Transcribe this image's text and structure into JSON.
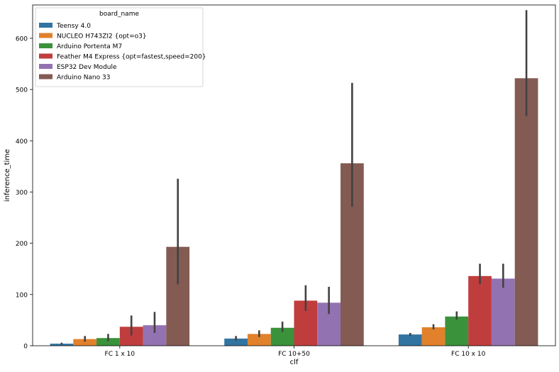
{
  "chart_data": {
    "type": "bar",
    "xlabel": "clf",
    "ylabel": "inference_time",
    "categories": [
      "FC 1 x 10",
      "FC 10+50",
      "FC 10 x 10"
    ],
    "ylim": [
      0,
      665
    ],
    "yticks": [
      0,
      100,
      200,
      300,
      400,
      500,
      600
    ],
    "grid": false,
    "legend": {
      "title": "board_name",
      "position": "top-left"
    },
    "series": [
      {
        "name": "Teensy 4.0",
        "color": "#3274a1",
        "values": [
          4,
          14,
          22
        ],
        "ci_low": [
          2,
          10,
          19
        ],
        "ci_high": [
          6,
          19,
          25
        ]
      },
      {
        "name": "NUCLEO H743ZI2 {opt=o3}",
        "color": "#e1812c",
        "values": [
          13,
          23,
          36
        ],
        "ci_low": [
          8,
          17,
          32
        ],
        "ci_high": [
          19,
          30,
          42
        ]
      },
      {
        "name": "Arduino Portenta M7",
        "color": "#3a923a",
        "values": [
          15,
          35,
          57
        ],
        "ci_low": [
          9,
          27,
          51
        ],
        "ci_high": [
          23,
          47,
          67
        ]
      },
      {
        "name": "Feather M4 Express {opt=fastest,speed=200}",
        "color": "#c03d3e",
        "values": [
          37,
          88,
          136
        ],
        "ci_low": [
          20,
          68,
          120
        ],
        "ci_high": [
          59,
          118,
          160
        ]
      },
      {
        "name": "ESP32 Dev Module",
        "color": "#9372b2",
        "values": [
          40,
          84,
          131
        ],
        "ci_low": [
          25,
          62,
          113
        ],
        "ci_high": [
          66,
          115,
          160
        ]
      },
      {
        "name": "Arduino Nano 33",
        "color": "#845b53",
        "values": [
          193,
          356,
          522
        ],
        "ci_low": [
          120,
          271,
          448
        ],
        "ci_high": [
          326,
          513,
          655
        ]
      }
    ]
  }
}
